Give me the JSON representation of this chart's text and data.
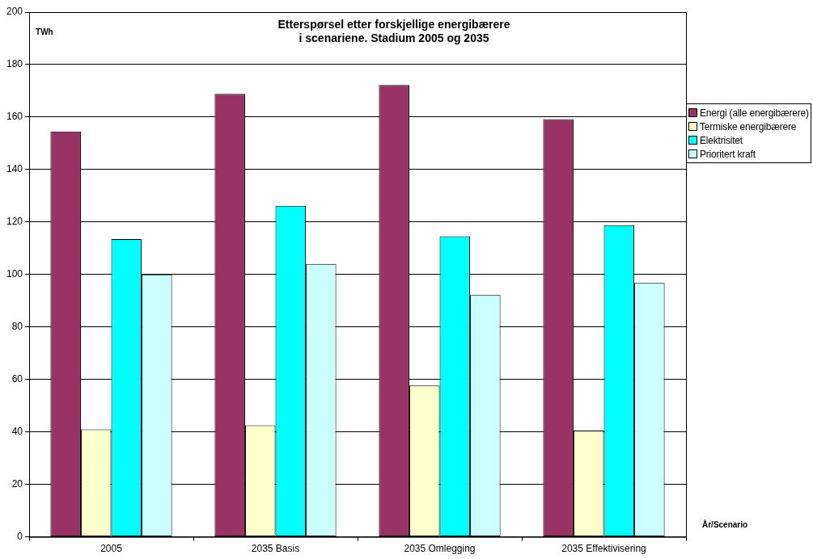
{
  "chart_data": {
    "type": "bar",
    "title": "Etterspørsel etter forskjellige energibærere\ni scenariene. Stadium 2005 og 2035",
    "ylabel": "TWh",
    "xlabel": "År/Scenario",
    "categories": [
      "2005",
      "2035 Basis",
      "2035 Omlegging",
      "2035 Effektivisering"
    ],
    "series": [
      {
        "name": "Energi (alle energibærere)",
        "color": "#993366",
        "values": [
          154.5,
          168.8,
          172.2,
          159.2
        ]
      },
      {
        "name": "Termiske energibærere",
        "color": "#ffffcc",
        "values": [
          41,
          42.5,
          57.7,
          40.5
        ]
      },
      {
        "name": "Elektrisitet",
        "color": "#00ffff",
        "values": [
          113.5,
          126.2,
          114.6,
          118.8
        ]
      },
      {
        "name": "Prioritert kraft",
        "color": "#ccffff",
        "values": [
          100,
          104,
          92.2,
          96.8
        ]
      }
    ],
    "ylim": [
      0,
      200
    ],
    "yticks": [
      0,
      20,
      40,
      60,
      80,
      100,
      120,
      140,
      160,
      180,
      200
    ],
    "grid": "y",
    "legend": "right"
  }
}
